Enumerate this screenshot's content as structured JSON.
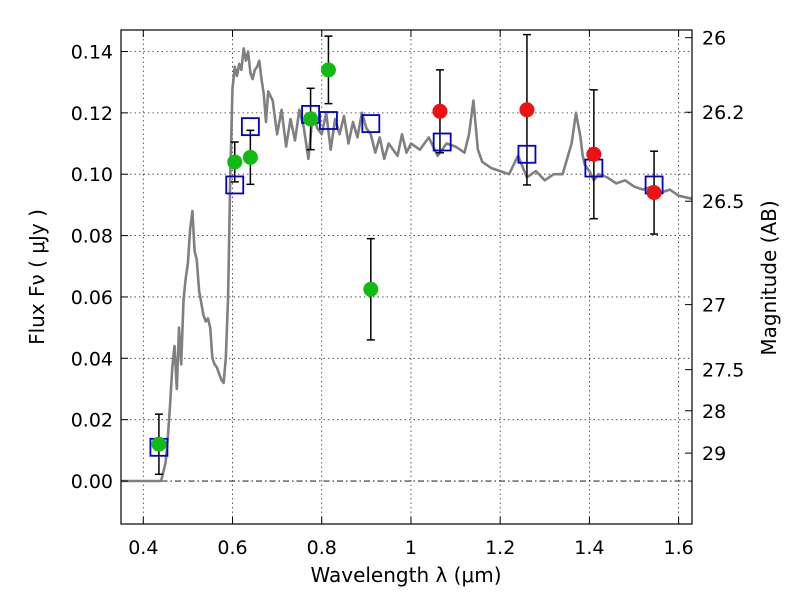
{
  "chart_data": {
    "type": "scatter",
    "xlabel": "Wavelength  λ (μm)",
    "ylabel": "Flux  Fν  ( μJy )",
    "y2label": "Magnitude (AB)",
    "xlim": [
      0.35,
      1.63
    ],
    "ylim": [
      -0.014,
      0.147
    ],
    "x_ticks": [
      0.4,
      0.6,
      0.8,
      1.0,
      1.2,
      1.4,
      1.6
    ],
    "x_tick_labels": [
      "0.4",
      "0.6",
      "0.8",
      "1",
      "1.2",
      "1.4",
      "1.6"
    ],
    "y_ticks": [
      0.0,
      0.02,
      0.04,
      0.06,
      0.08,
      0.1,
      0.12,
      0.14
    ],
    "y_tick_labels": [
      "0.00",
      "0.02",
      "0.04",
      "0.06",
      "0.08",
      "0.10",
      "0.12",
      "0.14"
    ],
    "y2_ticks": [
      {
        "label": "26",
        "flux": 0.1445
      },
      {
        "label": "26.2",
        "flux": 0.1202
      },
      {
        "label": "26.5",
        "flux": 0.0912
      },
      {
        "label": "27",
        "flux": 0.0575
      },
      {
        "label": "27.5",
        "flux": 0.0363
      },
      {
        "label": "28",
        "flux": 0.0229
      },
      {
        "label": "29",
        "flux": 0.0091
      }
    ],
    "grid": true,
    "colors": {
      "green": "#11bb11",
      "red": "#ee1111",
      "square": "#0000cc",
      "model": "#808080"
    },
    "series": [
      {
        "marker": "circle",
        "color": "green",
        "x": [
          0.435,
          0.605,
          0.64,
          0.775,
          0.815,
          0.91
        ],
        "y": [
          0.012,
          0.104,
          0.1055,
          0.118,
          0.134,
          0.0625
        ],
        "err": [
          0.0098,
          0.0065,
          0.0088,
          0.01,
          0.011,
          0.0165
        ]
      },
      {
        "marker": "circle",
        "color": "red",
        "x": [
          1.065,
          1.26,
          1.41,
          1.545
        ],
        "y": [
          0.1205,
          0.121,
          0.1065,
          0.094
        ],
        "err": [
          0.0135,
          0.0245,
          0.021,
          0.0135
        ]
      },
      {
        "marker": "square",
        "color": "square",
        "x": [
          0.435,
          0.605,
          0.64,
          0.775,
          0.815,
          0.91,
          1.07,
          1.26,
          1.41,
          1.545
        ],
        "y": [
          0.011,
          0.0965,
          0.1155,
          0.1195,
          0.1175,
          0.1165,
          0.1105,
          0.1065,
          0.102,
          0.0965
        ]
      },
      {
        "type": "line",
        "color": "model",
        "x": [
          0.35,
          0.43,
          0.44,
          0.45,
          0.455,
          0.46,
          0.465,
          0.47,
          0.475,
          0.48,
          0.485,
          0.49,
          0.495,
          0.5,
          0.505,
          0.51,
          0.515,
          0.52,
          0.525,
          0.53,
          0.535,
          0.54,
          0.545,
          0.55,
          0.555,
          0.56,
          0.565,
          0.57,
          0.575,
          0.58,
          0.585,
          0.59,
          0.595,
          0.6,
          0.605,
          0.61,
          0.615,
          0.62,
          0.625,
          0.63,
          0.635,
          0.64,
          0.645,
          0.65,
          0.655,
          0.66,
          0.665,
          0.67,
          0.675,
          0.68,
          0.69,
          0.7,
          0.71,
          0.72,
          0.73,
          0.74,
          0.75,
          0.76,
          0.77,
          0.78,
          0.79,
          0.8,
          0.81,
          0.82,
          0.83,
          0.84,
          0.85,
          0.86,
          0.87,
          0.88,
          0.89,
          0.9,
          0.91,
          0.92,
          0.93,
          0.94,
          0.95,
          0.96,
          0.97,
          0.98,
          0.99,
          1.0,
          1.02,
          1.04,
          1.06,
          1.08,
          1.1,
          1.12,
          1.13,
          1.14,
          1.15,
          1.16,
          1.18,
          1.2,
          1.22,
          1.24,
          1.26,
          1.28,
          1.3,
          1.32,
          1.34,
          1.36,
          1.37,
          1.38,
          1.385,
          1.39,
          1.4,
          1.41,
          1.42,
          1.44,
          1.46,
          1.48,
          1.5,
          1.52,
          1.54,
          1.56,
          1.58,
          1.6,
          1.63
        ],
        "y": [
          0.0,
          0.0,
          0.0,
          0.006,
          0.014,
          0.025,
          0.037,
          0.044,
          0.03,
          0.05,
          0.038,
          0.059,
          0.066,
          0.071,
          0.082,
          0.088,
          0.075,
          0.072,
          0.062,
          0.058,
          0.054,
          0.052,
          0.053,
          0.05,
          0.04,
          0.038,
          0.037,
          0.035,
          0.033,
          0.032,
          0.04,
          0.06,
          0.1,
          0.128,
          0.135,
          0.132,
          0.136,
          0.134,
          0.141,
          0.137,
          0.14,
          0.133,
          0.131,
          0.134,
          0.135,
          0.137,
          0.131,
          0.126,
          0.117,
          0.127,
          0.124,
          0.113,
          0.121,
          0.109,
          0.118,
          0.111,
          0.121,
          0.115,
          0.105,
          0.12,
          0.115,
          0.113,
          0.12,
          0.108,
          0.118,
          0.113,
          0.119,
          0.11,
          0.117,
          0.112,
          0.12,
          0.115,
          0.113,
          0.107,
          0.112,
          0.105,
          0.11,
          0.108,
          0.106,
          0.113,
          0.107,
          0.11,
          0.108,
          0.112,
          0.106,
          0.11,
          0.109,
          0.107,
          0.113,
          0.124,
          0.108,
          0.104,
          0.102,
          0.101,
          0.1,
          0.106,
          0.099,
          0.101,
          0.098,
          0.1,
          0.1,
          0.11,
          0.12,
          0.112,
          0.106,
          0.103,
          0.101,
          0.098,
          0.1,
          0.099,
          0.097,
          0.098,
          0.096,
          0.095,
          0.096,
          0.094,
          0.095,
          0.093,
          0.092
        ]
      }
    ]
  }
}
